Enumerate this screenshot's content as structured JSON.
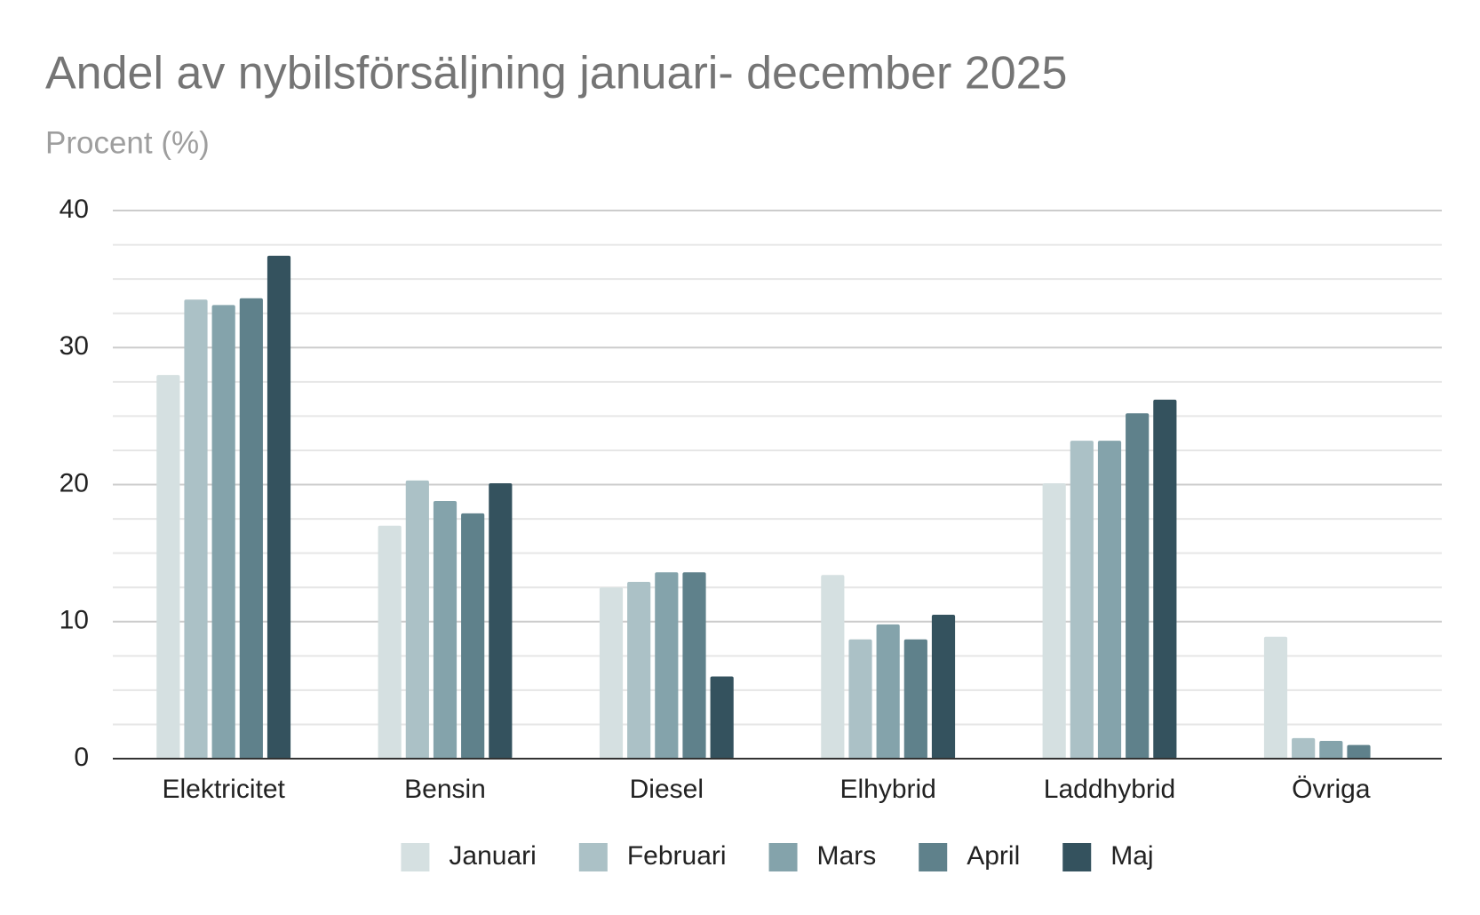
{
  "chart_data": {
    "type": "bar",
    "title": "Andel av nybilsförsäljning januari- december 2025",
    "subtitle": "Procent (%)",
    "categories": [
      "Elektricitet",
      "Bensin",
      "Diesel",
      "Elhybrid",
      "Laddhybrid",
      "Övriga"
    ],
    "series": [
      {
        "name": "Januari",
        "color": "#d5e0e1",
        "values": [
          28.0,
          17.0,
          12.5,
          13.4,
          20.1,
          8.9
        ]
      },
      {
        "name": "Februari",
        "color": "#abc1c6",
        "values": [
          33.5,
          20.3,
          12.9,
          8.7,
          23.2,
          1.5
        ]
      },
      {
        "name": "Mars",
        "color": "#84a3ab",
        "values": [
          33.1,
          18.8,
          13.6,
          9.8,
          23.2,
          1.3
        ]
      },
      {
        "name": "April",
        "color": "#5f818b",
        "values": [
          33.6,
          17.9,
          13.6,
          8.7,
          25.2,
          1.0
        ]
      },
      {
        "name": "Maj",
        "color": "#34525e",
        "values": [
          36.7,
          20.1,
          6.0,
          10.5,
          26.2,
          null
        ]
      }
    ],
    "ylim": [
      0,
      40
    ],
    "yticks": [
      0,
      10,
      20,
      30,
      40
    ],
    "grid": true,
    "minor_grid": true,
    "legend": "bottom"
  }
}
